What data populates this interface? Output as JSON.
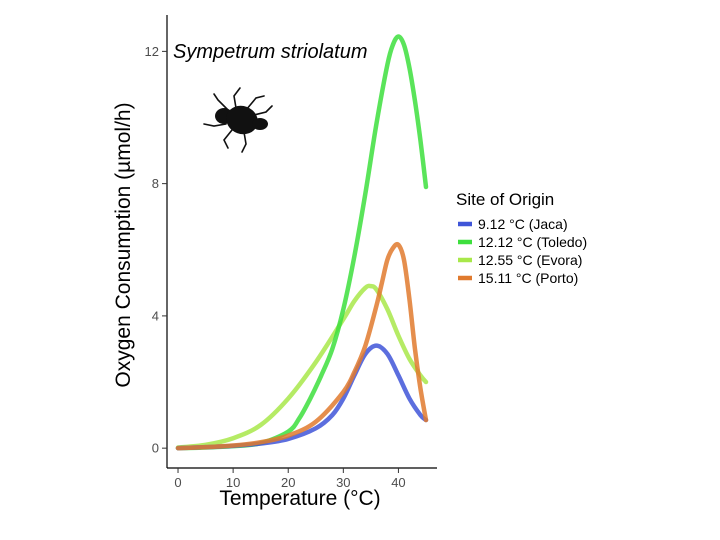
{
  "chart_data": {
    "type": "line",
    "annotation": "Sympetrum striolatum",
    "xlabel": "Temperature (°C)",
    "ylabel": "Oxygen Consumption (µmol/h)",
    "xlim": [
      -2,
      47
    ],
    "ylim": [
      -0.6,
      13.1
    ],
    "xticks": [
      0,
      10,
      20,
      30,
      40
    ],
    "yticks": [
      0,
      4,
      8,
      12
    ],
    "grid": false,
    "legend": {
      "title": "Site of Origin",
      "position": "right"
    },
    "series": [
      {
        "name": "9.12 °C (Jaca)",
        "color": "#3f55d8",
        "x": [
          0,
          5,
          10,
          15,
          20,
          25,
          28,
          30,
          32,
          34,
          36,
          38,
          40,
          42,
          44,
          45
        ],
        "y": [
          0.0,
          0.03,
          0.07,
          0.14,
          0.28,
          0.6,
          1.0,
          1.5,
          2.2,
          2.85,
          3.1,
          2.85,
          2.2,
          1.5,
          1.0,
          0.85
        ]
      },
      {
        "name": "12.12 °C (Toledo)",
        "color": "#3ddf3d",
        "x": [
          0,
          5,
          10,
          15,
          20,
          22,
          24,
          26,
          28,
          30,
          32,
          34,
          36,
          38,
          39,
          40,
          41,
          42,
          43,
          44,
          45
        ],
        "y": [
          0.0,
          0.02,
          0.06,
          0.15,
          0.5,
          0.9,
          1.5,
          2.2,
          3.0,
          4.2,
          5.8,
          7.7,
          9.8,
          11.6,
          12.2,
          12.45,
          12.2,
          11.5,
          10.5,
          9.3,
          7.9
        ]
      },
      {
        "name": "12.55 °C (Evora)",
        "color": "#a8e84a",
        "x": [
          0,
          5,
          10,
          15,
          20,
          25,
          30,
          32,
          34,
          35,
          36,
          38,
          40,
          42,
          44,
          45
        ],
        "y": [
          0.02,
          0.1,
          0.3,
          0.7,
          1.5,
          2.6,
          3.9,
          4.45,
          4.85,
          4.9,
          4.8,
          4.2,
          3.4,
          2.7,
          2.2,
          2.0
        ]
      },
      {
        "name": "15.11 °C (Porto)",
        "color": "#e07a2e",
        "x": [
          0,
          5,
          10,
          15,
          20,
          25,
          30,
          32,
          34,
          36,
          37,
          38,
          39,
          40,
          41,
          42,
          43,
          44,
          45
        ],
        "y": [
          0.0,
          0.03,
          0.08,
          0.18,
          0.38,
          0.8,
          1.7,
          2.3,
          3.1,
          4.3,
          5.0,
          5.7,
          6.05,
          6.15,
          5.7,
          4.5,
          3.0,
          1.8,
          0.85
        ]
      }
    ]
  }
}
